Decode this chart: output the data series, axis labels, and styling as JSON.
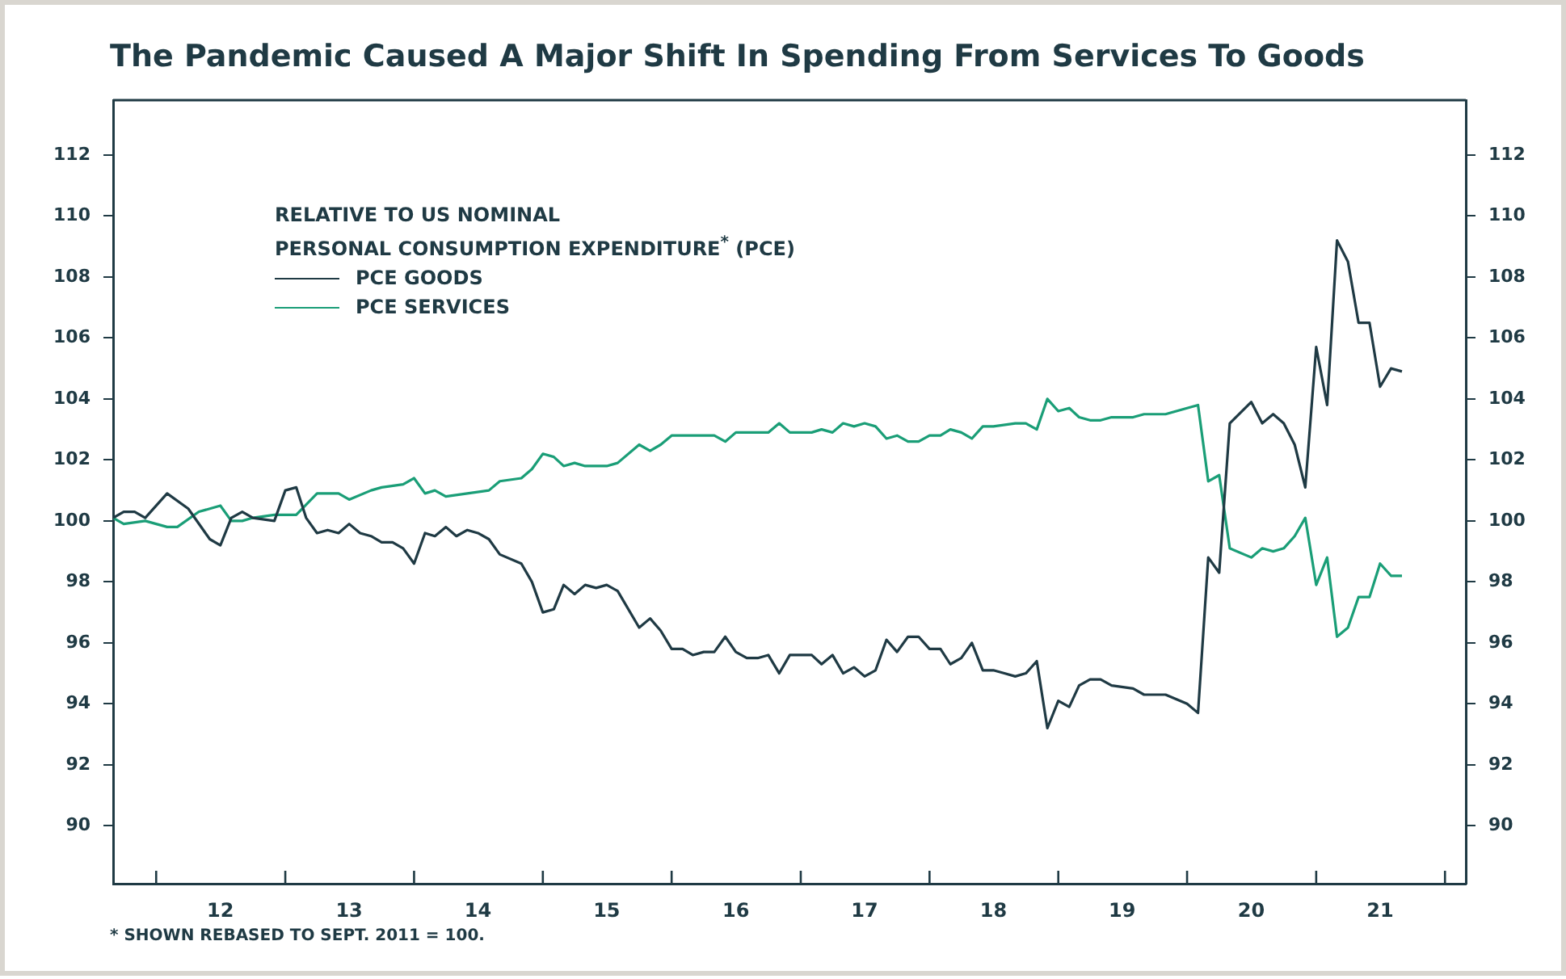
{
  "chart_data": {
    "type": "line",
    "title": "The Pandemic Caused A Major Shift In Spending From Services To Goods",
    "legend_title": "RELATIVE TO US NOMINAL\nPERSONAL CONSUMPTION EXPENDITURE$^{*}$ (PCE)",
    "legend": "top left",
    "marker": "none",
    "line_style": "solid",
    "grid": false,
    "annotations": [
      "* SHOWN REBASED TO SEPT. 2011 = 100."
    ],
    "xlim": [
      "2011-09",
      "2022-03"
    ],
    "xticks": [
      {
        "value": "2012-01",
        "label": null
      },
      {
        "value": "2012-07",
        "label": "12"
      },
      {
        "value": "2013-01",
        "label": null
      },
      {
        "value": "2013-07",
        "label": "13"
      },
      {
        "value": "2014-01",
        "label": null
      },
      {
        "value": "2014-07",
        "label": "14"
      },
      {
        "value": "2015-01",
        "label": null
      },
      {
        "value": "2015-07",
        "label": "15"
      },
      {
        "value": "2016-01",
        "label": null
      },
      {
        "value": "2016-07",
        "label": "16"
      },
      {
        "value": "2017-01",
        "label": null
      },
      {
        "value": "2017-07",
        "label": "17"
      },
      {
        "value": "2018-01",
        "label": null
      },
      {
        "value": "2018-07",
        "label": "18"
      },
      {
        "value": "2019-01",
        "label": null
      },
      {
        "value": "2019-07",
        "label": "19"
      },
      {
        "value": "2020-01",
        "label": null
      },
      {
        "value": "2020-07",
        "label": "20"
      },
      {
        "value": "2021-01",
        "label": null
      },
      {
        "value": "2021-07",
        "label": "21"
      },
      {
        "value": "2022-01",
        "label": null
      }
    ],
    "ylim": [
      88.1,
      113.8
    ],
    "yticks": [
      90,
      92,
      94,
      96,
      98,
      100,
      102,
      104,
      106,
      108,
      110,
      112
    ],
    "y2lim": [
      88.1,
      113.8
    ],
    "y2ticks": [
      90,
      92,
      94,
      96,
      98,
      100,
      102,
      104,
      106,
      108,
      110,
      112
    ],
    "series": [
      {
        "name": "PCE GOODS",
        "color": "#1f3a44",
        "x": [
          "2011-09",
          "2011-10",
          "2011-11",
          "2011-12",
          "2012-02",
          "2012-04",
          "2012-06",
          "2012-07",
          "2012-08",
          "2012-09",
          "2012-10",
          "2012-12",
          "2013-01",
          "2013-02",
          "2013-03",
          "2013-04",
          "2013-05",
          "2013-06",
          "2013-07",
          "2013-08",
          "2013-09",
          "2013-10",
          "2013-11",
          "2013-12",
          "2014-01",
          "2014-02",
          "2014-03",
          "2014-04",
          "2014-05",
          "2014-06",
          "2014-07",
          "2014-08",
          "2014-09",
          "2014-11",
          "2014-12",
          "2015-01",
          "2015-02",
          "2015-03",
          "2015-04",
          "2015-05",
          "2015-06",
          "2015-07",
          "2015-08",
          "2015-10",
          "2015-11",
          "2015-12",
          "2016-01",
          "2016-02",
          "2016-03",
          "2016-04",
          "2016-05",
          "2016-06",
          "2016-07",
          "2016-08",
          "2016-09",
          "2016-10",
          "2016-11",
          "2016-12",
          "2017-02",
          "2017-03",
          "2017-04",
          "2017-05",
          "2017-06",
          "2017-07",
          "2017-08",
          "2017-09",
          "2017-10",
          "2017-11",
          "2017-12",
          "2018-01",
          "2018-02",
          "2018-03",
          "2018-04",
          "2018-05",
          "2018-06",
          "2018-07",
          "2018-08",
          "2018-09",
          "2018-10",
          "2018-11",
          "2018-12",
          "2019-01",
          "2019-02",
          "2019-03",
          "2019-04",
          "2019-05",
          "2019-06",
          "2019-08",
          "2019-09",
          "2019-11",
          "2020-01",
          "2020-02",
          "2020-03",
          "2020-04",
          "2020-05",
          "2020-07",
          "2020-08",
          "2020-09",
          "2020-10",
          "2020-11",
          "2020-12",
          "2021-01",
          "2021-02",
          "2021-03",
          "2021-04",
          "2021-05",
          "2021-06",
          "2021-07",
          "2021-08",
          "2021-09"
        ],
        "values": [
          100.1,
          100.3,
          100.3,
          100.1,
          100.9,
          100.4,
          99.4,
          99.2,
          100.1,
          100.3,
          100.1,
          100.0,
          101.0,
          101.1,
          100.1,
          99.6,
          99.7,
          99.6,
          99.9,
          99.6,
          99.5,
          99.3,
          99.3,
          99.1,
          98.6,
          99.6,
          99.5,
          99.8,
          99.5,
          99.7,
          99.6,
          99.4,
          98.9,
          98.6,
          98.0,
          97.0,
          97.1,
          97.9,
          97.6,
          97.9,
          97.8,
          97.9,
          97.7,
          96.5,
          96.8,
          96.4,
          95.8,
          95.8,
          95.6,
          95.7,
          95.7,
          96.2,
          95.7,
          95.5,
          95.5,
          95.6,
          95.0,
          95.6,
          95.6,
          95.3,
          95.6,
          95.0,
          95.2,
          94.9,
          95.1,
          96.1,
          95.7,
          96.2,
          96.2,
          95.8,
          95.8,
          95.3,
          95.5,
          96.0,
          95.1,
          95.1,
          95.0,
          94.9,
          95.0,
          95.4,
          93.2,
          94.1,
          93.9,
          94.6,
          94.8,
          94.8,
          94.6,
          94.5,
          94.3,
          94.3,
          94.0,
          93.7,
          98.8,
          98.3,
          103.2,
          103.9,
          103.2,
          103.5,
          103.2,
          102.5,
          101.1,
          105.7,
          103.8,
          109.2,
          108.5,
          106.5,
          106.5,
          104.4,
          105.0,
          104.9
        ]
      },
      {
        "name": "PCE SERVICES",
        "color": "#1a9e77",
        "x": [
          "2011-09",
          "2011-10",
          "2011-12",
          "2012-02",
          "2012-03",
          "2012-05",
          "2012-07",
          "2012-08",
          "2012-09",
          "2012-10",
          "2012-12",
          "2013-01",
          "2013-02",
          "2013-04",
          "2013-05",
          "2013-06",
          "2013-07",
          "2013-09",
          "2013-10",
          "2013-12",
          "2014-01",
          "2014-02",
          "2014-03",
          "2014-04",
          "2014-06",
          "2014-08",
          "2014-09",
          "2014-11",
          "2014-12",
          "2015-01",
          "2015-02",
          "2015-03",
          "2015-04",
          "2015-05",
          "2015-07",
          "2015-08",
          "2015-10",
          "2015-11",
          "2015-12",
          "2016-01",
          "2016-02",
          "2016-03",
          "2016-05",
          "2016-06",
          "2016-07",
          "2016-10",
          "2016-11",
          "2016-12",
          "2017-02",
          "2017-03",
          "2017-04",
          "2017-05",
          "2017-06",
          "2017-07",
          "2017-08",
          "2017-09",
          "2017-10",
          "2017-11",
          "2017-12",
          "2018-01",
          "2018-02",
          "2018-03",
          "2018-04",
          "2018-05",
          "2018-06",
          "2018-07",
          "2018-09",
          "2018-10",
          "2018-11",
          "2018-12",
          "2019-01",
          "2019-02",
          "2019-03",
          "2019-04",
          "2019-05",
          "2019-06",
          "2019-08",
          "2019-09",
          "2019-11",
          "2020-01",
          "2020-02",
          "2020-03",
          "2020-04",
          "2020-05",
          "2020-07",
          "2020-08",
          "2020-09",
          "2020-10",
          "2020-11",
          "2020-12",
          "2021-01",
          "2021-02",
          "2021-03",
          "2021-04",
          "2021-05",
          "2021-06",
          "2021-07",
          "2021-08",
          "2021-09"
        ],
        "values": [
          100.1,
          99.9,
          100.0,
          99.8,
          99.8,
          100.3,
          100.5,
          100.0,
          100.0,
          100.1,
          100.2,
          100.2,
          100.2,
          100.9,
          100.9,
          100.9,
          100.7,
          101.0,
          101.1,
          101.2,
          101.4,
          100.9,
          101.0,
          100.8,
          100.9,
          101.0,
          101.3,
          101.4,
          101.7,
          102.2,
          102.1,
          101.8,
          101.9,
          101.8,
          101.8,
          101.9,
          102.5,
          102.3,
          102.5,
          102.8,
          102.8,
          102.8,
          102.8,
          102.6,
          102.9,
          102.9,
          103.2,
          102.9,
          102.9,
          103.0,
          102.9,
          103.2,
          103.1,
          103.2,
          103.1,
          102.7,
          102.8,
          102.6,
          102.6,
          102.8,
          102.8,
          103.0,
          102.9,
          102.7,
          103.1,
          103.1,
          103.2,
          103.2,
          103.0,
          104.0,
          103.6,
          103.7,
          103.4,
          103.3,
          103.3,
          103.4,
          103.4,
          103.5,
          103.5,
          103.7,
          103.8,
          101.3,
          101.5,
          99.1,
          98.8,
          99.1,
          99.0,
          99.1,
          99.5,
          100.1,
          97.9,
          98.8,
          96.2,
          96.5,
          97.5,
          97.5,
          98.6,
          98.2,
          98.2
        ]
      }
    ]
  }
}
